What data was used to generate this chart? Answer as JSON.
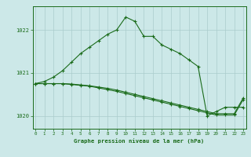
{
  "line1": [
    1020.75,
    1020.8,
    1020.9,
    1021.05,
    1021.25,
    1021.45,
    1021.6,
    1021.75,
    1021.9,
    1022.0,
    1022.3,
    1022.2,
    1021.85,
    1021.85,
    1021.65,
    1021.55,
    1021.45,
    1021.3,
    1021.15,
    1020.0,
    1020.1,
    1020.2,
    1020.2,
    1020.2
  ],
  "line2": [
    1020.75,
    1020.75,
    1020.75,
    1020.75,
    1020.73,
    1020.71,
    1020.69,
    1020.65,
    1020.61,
    1020.57,
    1020.52,
    1020.47,
    1020.42,
    1020.37,
    1020.32,
    1020.27,
    1020.22,
    1020.17,
    1020.12,
    1020.07,
    1020.02,
    1020.02,
    1020.02,
    1020.38
  ],
  "line3": [
    1020.75,
    1020.75,
    1020.75,
    1020.75,
    1020.74,
    1020.72,
    1020.7,
    1020.67,
    1020.64,
    1020.6,
    1020.55,
    1020.5,
    1020.45,
    1020.4,
    1020.35,
    1020.3,
    1020.25,
    1020.2,
    1020.15,
    1020.1,
    1020.05,
    1020.05,
    1020.05,
    1020.42
  ],
  "hours": [
    0,
    1,
    2,
    3,
    4,
    5,
    6,
    7,
    8,
    9,
    10,
    11,
    12,
    13,
    14,
    15,
    16,
    17,
    18,
    19,
    20,
    21,
    22,
    23
  ],
  "ylim": [
    1019.7,
    1022.55
  ],
  "yticks": [
    1020,
    1021,
    1022
  ],
  "line_color": "#1a6b1a",
  "bg_color": "#cce8e8",
  "grid_color": "#aacccc",
  "xlabel": "Graphe pression niveau de la mer (hPa)",
  "xlabel_color": "#1a6b1a",
  "tick_color": "#1a6b1a",
  "figsize": [
    3.2,
    2.0
  ],
  "dpi": 100
}
